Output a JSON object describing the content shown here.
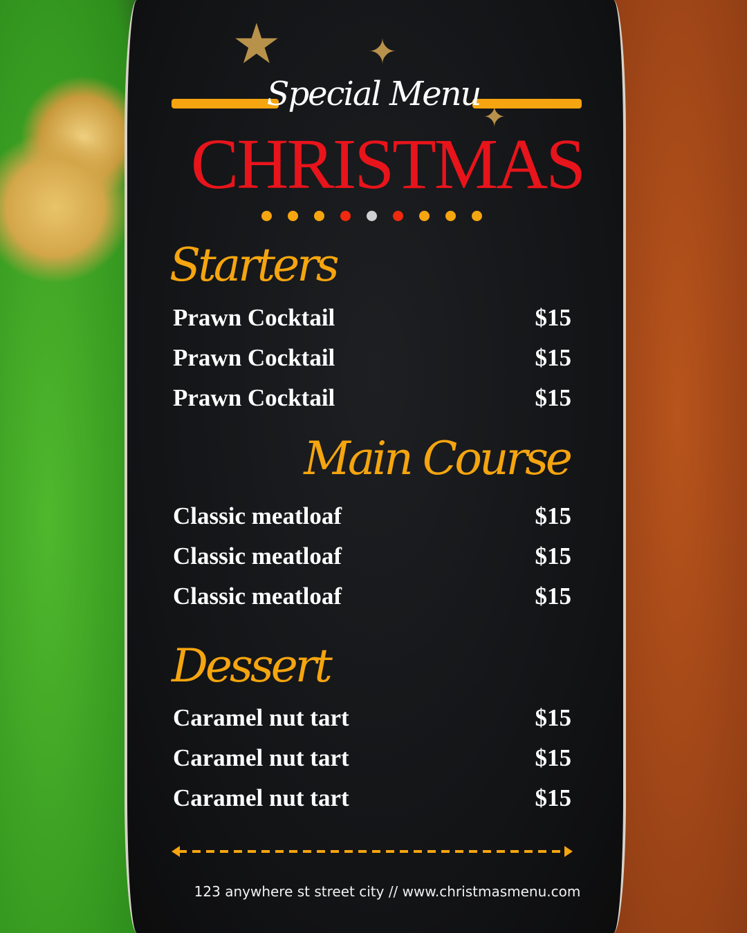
{
  "header": {
    "subtitle": "Special Menu",
    "title": "CHRISTMAS"
  },
  "colors": {
    "accent": "#f5a50f",
    "title": "#e8141b",
    "dots": [
      "#f5a50f",
      "#f5a50f",
      "#f5a50f",
      "#ef2a0f",
      "#d0d0d0",
      "#ef2a0f",
      "#f5a50f",
      "#f5a50f",
      "#f5a50f"
    ]
  },
  "sections": [
    {
      "title": "Starters",
      "items": [
        {
          "name": "Prawn Cocktail",
          "price": "$15"
        },
        {
          "name": "Prawn Cocktail",
          "price": "$15"
        },
        {
          "name": "Prawn Cocktail",
          "price": "$15"
        }
      ]
    },
    {
      "title": "Main Course",
      "items": [
        {
          "name": "Classic meatloaf",
          "price": "$15"
        },
        {
          "name": "Classic meatloaf",
          "price": "$15"
        },
        {
          "name": "Classic meatloaf",
          "price": "$15"
        }
      ]
    },
    {
      "title": "Dessert",
      "items": [
        {
          "name": "Caramel nut tart",
          "price": "$15"
        },
        {
          "name": "Caramel nut tart",
          "price": "$15"
        },
        {
          "name": "Caramel nut tart",
          "price": "$15"
        }
      ]
    }
  ],
  "footer": {
    "text": "123 anywhere st street city  //  www.christmasmenu.com"
  }
}
